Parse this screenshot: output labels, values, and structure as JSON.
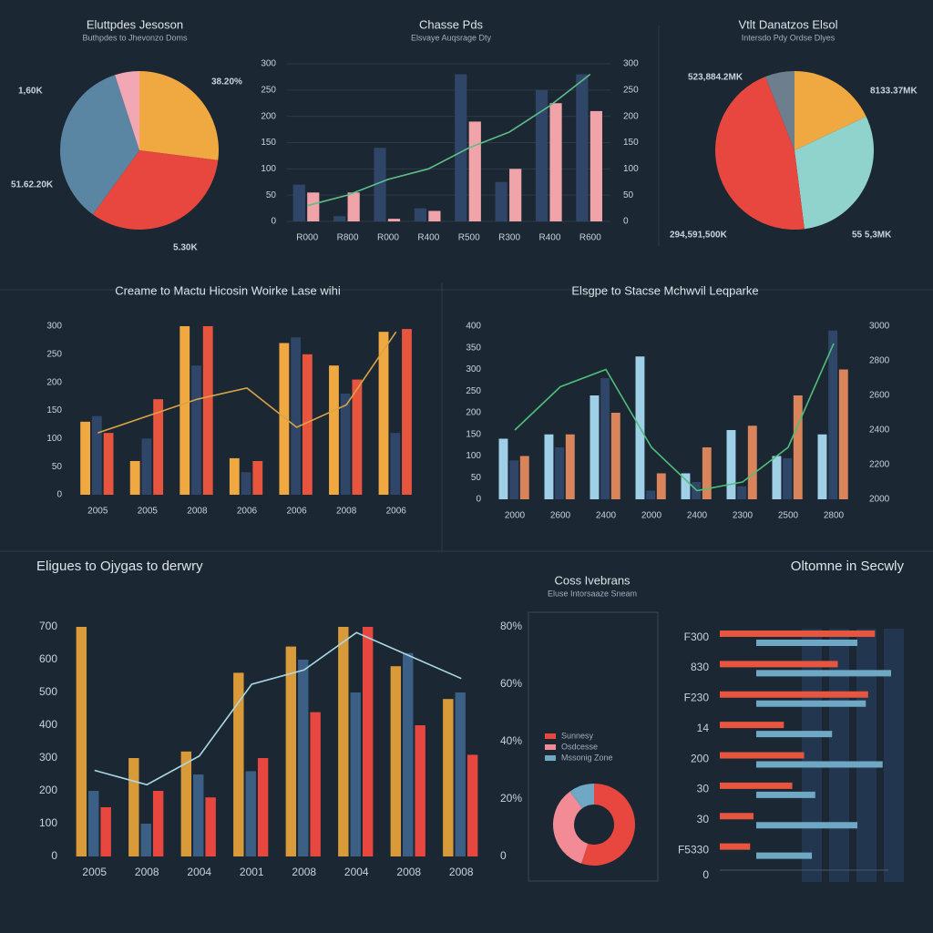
{
  "chart_data": [
    {
      "type": "pie",
      "title": "Eluttpdes Jesoson",
      "subtitle": "Buthpdes to Jhevonzo Doms",
      "values": [
        27,
        33,
        35,
        5
      ],
      "colors": [
        "#f0a840",
        "#e8473f",
        "#5a86a3",
        "#f2a7b4"
      ],
      "annotations": [
        "1,60K",
        "38.20%",
        "51.62.20K",
        "5.30K"
      ]
    },
    {
      "type": "combo",
      "title": "Chasse Pds",
      "subtitle": "Elsvaye Auqsrage Dty",
      "categories": [
        "R000",
        "R800",
        "R000",
        "R400",
        "R500",
        "R300",
        "R400",
        "R600"
      ],
      "ylim": [
        0,
        300
      ],
      "yticks": [
        0,
        50,
        100,
        150,
        200,
        250,
        300
      ],
      "y2lim": [
        0,
        300
      ],
      "y2ticks": [
        0,
        50,
        100,
        150,
        200,
        250,
        300
      ],
      "grid": true,
      "series": [
        {
          "color": "#2f4668",
          "values": [
            70,
            10,
            140,
            25,
            280,
            75,
            250,
            280
          ]
        },
        {
          "color": "#f0a3a8",
          "values": [
            55,
            55,
            5,
            20,
            190,
            100,
            225,
            210
          ]
        },
        {
          "type": "line",
          "axis": "y2",
          "color": "#5fbf8a",
          "values": [
            30,
            50,
            80,
            100,
            140,
            170,
            220,
            280
          ]
        }
      ]
    },
    {
      "type": "pie",
      "title": "Vtlt Danatzos Elsol",
      "subtitle": "Intersdo Pdy Ordse Dlyes",
      "values": [
        18,
        30,
        46,
        6
      ],
      "colors": [
        "#f0a840",
        "#8fd3cc",
        "#e8473f",
        "#6d7f8e"
      ],
      "annotations": [
        "523,884.2MK",
        "8133.37MK",
        "294,591,500K",
        "55 5,3MK"
      ]
    },
    {
      "type": "combo",
      "title": "Creame to Mactu Hicosin Woirke Lase wihi",
      "categories": [
        "2005",
        "2005",
        "2008",
        "2006",
        "2006",
        "2008",
        "2006"
      ],
      "ylim": [
        0,
        300
      ],
      "yticks": [
        0,
        50,
        100,
        150,
        200,
        250,
        300
      ],
      "grid": false,
      "series": [
        {
          "color": "#f0a840",
          "values": [
            130,
            60,
            300,
            65,
            270,
            230,
            290
          ]
        },
        {
          "color": "#2f4668",
          "values": [
            140,
            100,
            230,
            40,
            280,
            180,
            110
          ]
        },
        {
          "color": "#e8553f",
          "values": [
            110,
            170,
            300,
            60,
            250,
            205,
            295
          ]
        },
        {
          "type": "line",
          "color": "#d9a347",
          "values": [
            110,
            140,
            170,
            190,
            120,
            160,
            290
          ]
        }
      ]
    },
    {
      "type": "combo",
      "title": "Elsgpe to Stacse Mchwvil Leqparke",
      "categories": [
        "2000",
        "2600",
        "2400",
        "2000",
        "2400",
        "2300",
        "2500",
        "2800"
      ],
      "ylim": [
        0,
        400
      ],
      "yticks": [
        0,
        50,
        100,
        150,
        200,
        250,
        300,
        350,
        400
      ],
      "y2lim": [
        2000,
        3000
      ],
      "y2ticks": [
        2000,
        2200,
        2400,
        2600,
        2800,
        3000
      ],
      "grid": false,
      "series": [
        {
          "color": "#9fd0e8",
          "values": [
            140,
            150,
            240,
            330,
            60,
            160,
            100,
            150
          ]
        },
        {
          "color": "#2f4668",
          "values": [
            90,
            120,
            280,
            20,
            40,
            30,
            95,
            390
          ]
        },
        {
          "color": "#d9845a",
          "values": [
            100,
            150,
            200,
            60,
            120,
            170,
            240,
            300
          ]
        },
        {
          "type": "line",
          "axis": "y2",
          "color": "#4fbf7a",
          "values": [
            2400,
            2650,
            2750,
            2300,
            2050,
            2100,
            2300,
            2900
          ]
        }
      ]
    },
    {
      "type": "combo",
      "title": "Eligues to Ojygas to derwry",
      "categories": [
        "2005",
        "2008",
        "2004",
        "2001",
        "2008",
        "2004",
        "2008",
        "2008"
      ],
      "ylim": [
        0,
        700
      ],
      "yticks": [
        0,
        100,
        200,
        300,
        400,
        500,
        600,
        700
      ],
      "y2lim": [
        0,
        80
      ],
      "y2ticks": [
        0,
        {
          "value": 20,
          "label": "20%"
        },
        {
          "value": 40,
          "label": "40%"
        },
        {
          "value": 60,
          "label": "60%"
        },
        {
          "value": 80,
          "label": "80%"
        }
      ],
      "grid": false,
      "series": [
        {
          "color": "#d99a3a",
          "values": [
            700,
            300,
            320,
            560,
            640,
            700,
            580,
            480
          ]
        },
        {
          "color": "#3b5f85",
          "values": [
            200,
            100,
            250,
            260,
            600,
            500,
            620,
            500
          ]
        },
        {
          "color": "#e8473f",
          "values": [
            150,
            200,
            180,
            300,
            440,
            700,
            400,
            310
          ]
        },
        {
          "type": "line",
          "axis": "y2",
          "color": "#a9d8e6",
          "values": [
            30,
            25,
            35,
            60,
            65,
            78,
            70,
            62
          ]
        }
      ]
    },
    {
      "type": "donut",
      "title": "Coss Ivebrans",
      "subtitle": "Eluse Intorsaaze Sneam",
      "categories": [
        "Sunnesy",
        "Osdcesse",
        "Mssonig Zone"
      ],
      "values": [
        55,
        35,
        10
      ],
      "colors": [
        "#e8473f",
        "#f28b96",
        "#6fa8c4"
      ]
    },
    {
      "type": "hbar",
      "title": "Oltomne in Secwly",
      "categories": [
        "F300",
        "830",
        "F230",
        "14",
        "200",
        "30",
        "30",
        "F5330"
      ],
      "xlim": [
        0,
        100
      ],
      "xticks": [
        0
      ],
      "series": [
        {
          "color": "#e8553f",
          "values": [
            92,
            70,
            88,
            38,
            50,
            43,
            20,
            18
          ]
        },
        {
          "color": "#6fa8c4",
          "values": [
            60,
            80,
            65,
            45,
            75,
            35,
            60,
            33
          ]
        }
      ]
    }
  ]
}
